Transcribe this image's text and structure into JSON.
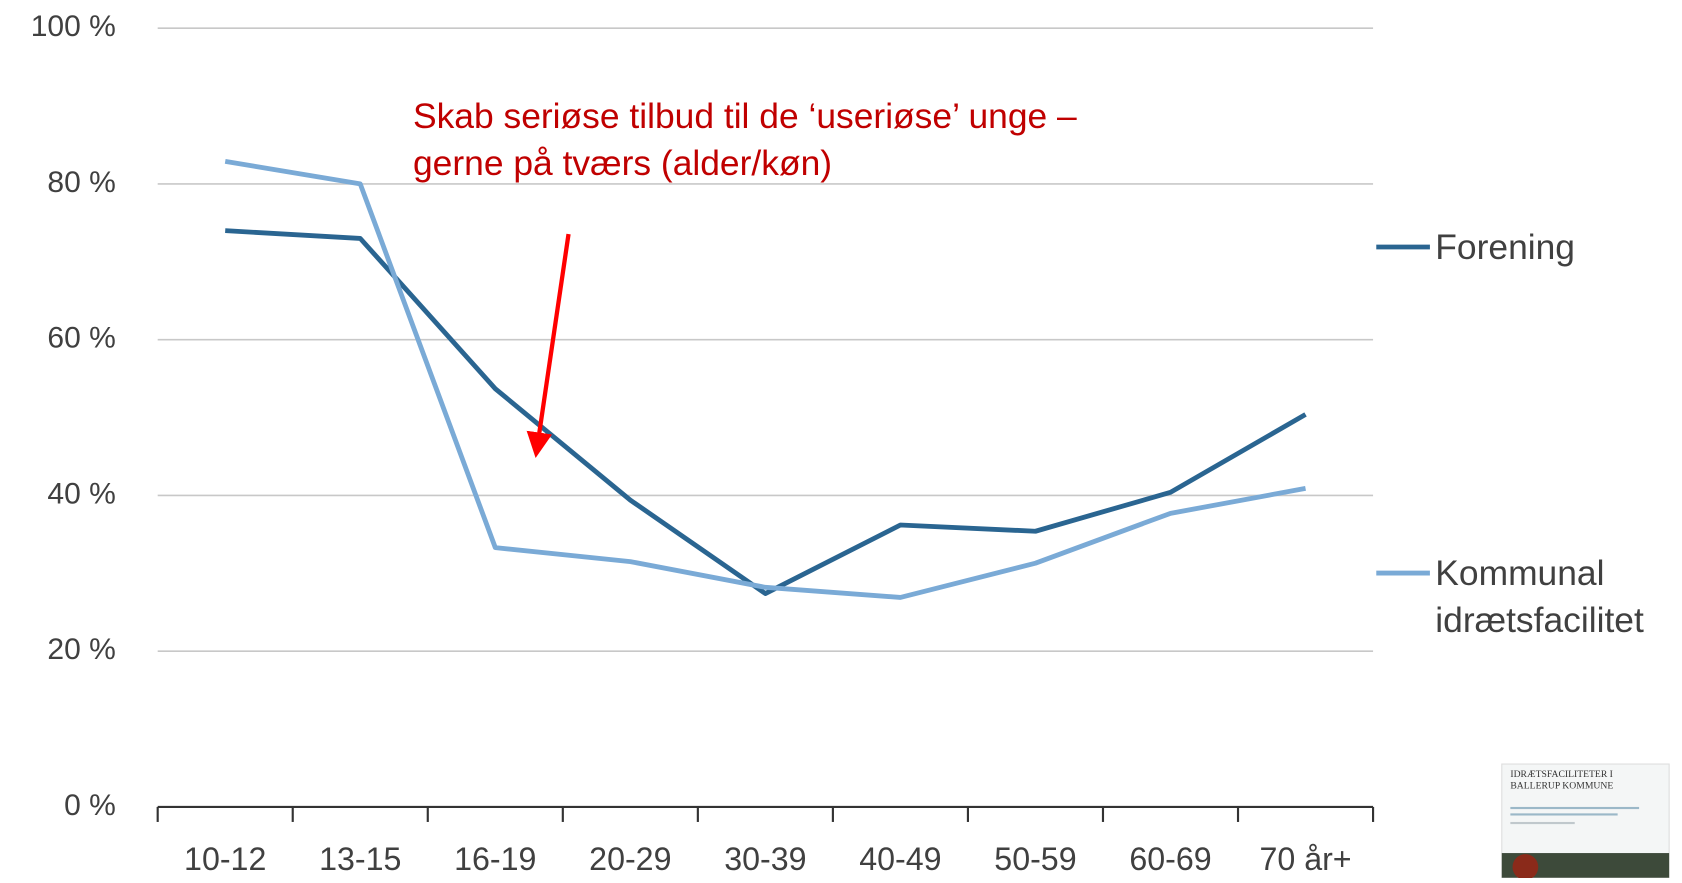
{
  "chart_data": {
    "type": "line",
    "annotation": "Skab seriøse tilbud til de ‘useriøse’ unge – gerne på tværs (alder/køn)",
    "inset_title": "IDRÆTSFACILITETER I BALLERUP KOMMUNE",
    "categories": [
      "10-12",
      "13-15",
      "16-19",
      "20-29",
      "30-39",
      "40-49",
      "50-59",
      "60-69",
      "70 år+"
    ],
    "series": [
      {
        "name": "Forening",
        "color": "#2a6591",
        "values": [
          74.0,
          73.0,
          53.7,
          39.4,
          27.4,
          36.2,
          35.4,
          40.4,
          50.4
        ]
      },
      {
        "name": "Kommunal idrætsfacilitet",
        "color": "#7aaad6",
        "values": [
          82.9,
          80.0,
          33.3,
          31.5,
          28.2,
          26.9,
          31.3,
          37.7,
          40.9
        ]
      }
    ],
    "ylim": [
      0,
      100
    ],
    "yticks": [
      {
        "value": 0,
        "label": "0 %"
      },
      {
        "value": 20,
        "label": "20 %"
      },
      {
        "value": 40,
        "label": "40 %"
      },
      {
        "value": 60,
        "label": "60 %"
      },
      {
        "value": 80,
        "label": "80 %"
      },
      {
        "value": 100,
        "label": "100 %"
      }
    ],
    "grid": true,
    "legend": "right"
  }
}
